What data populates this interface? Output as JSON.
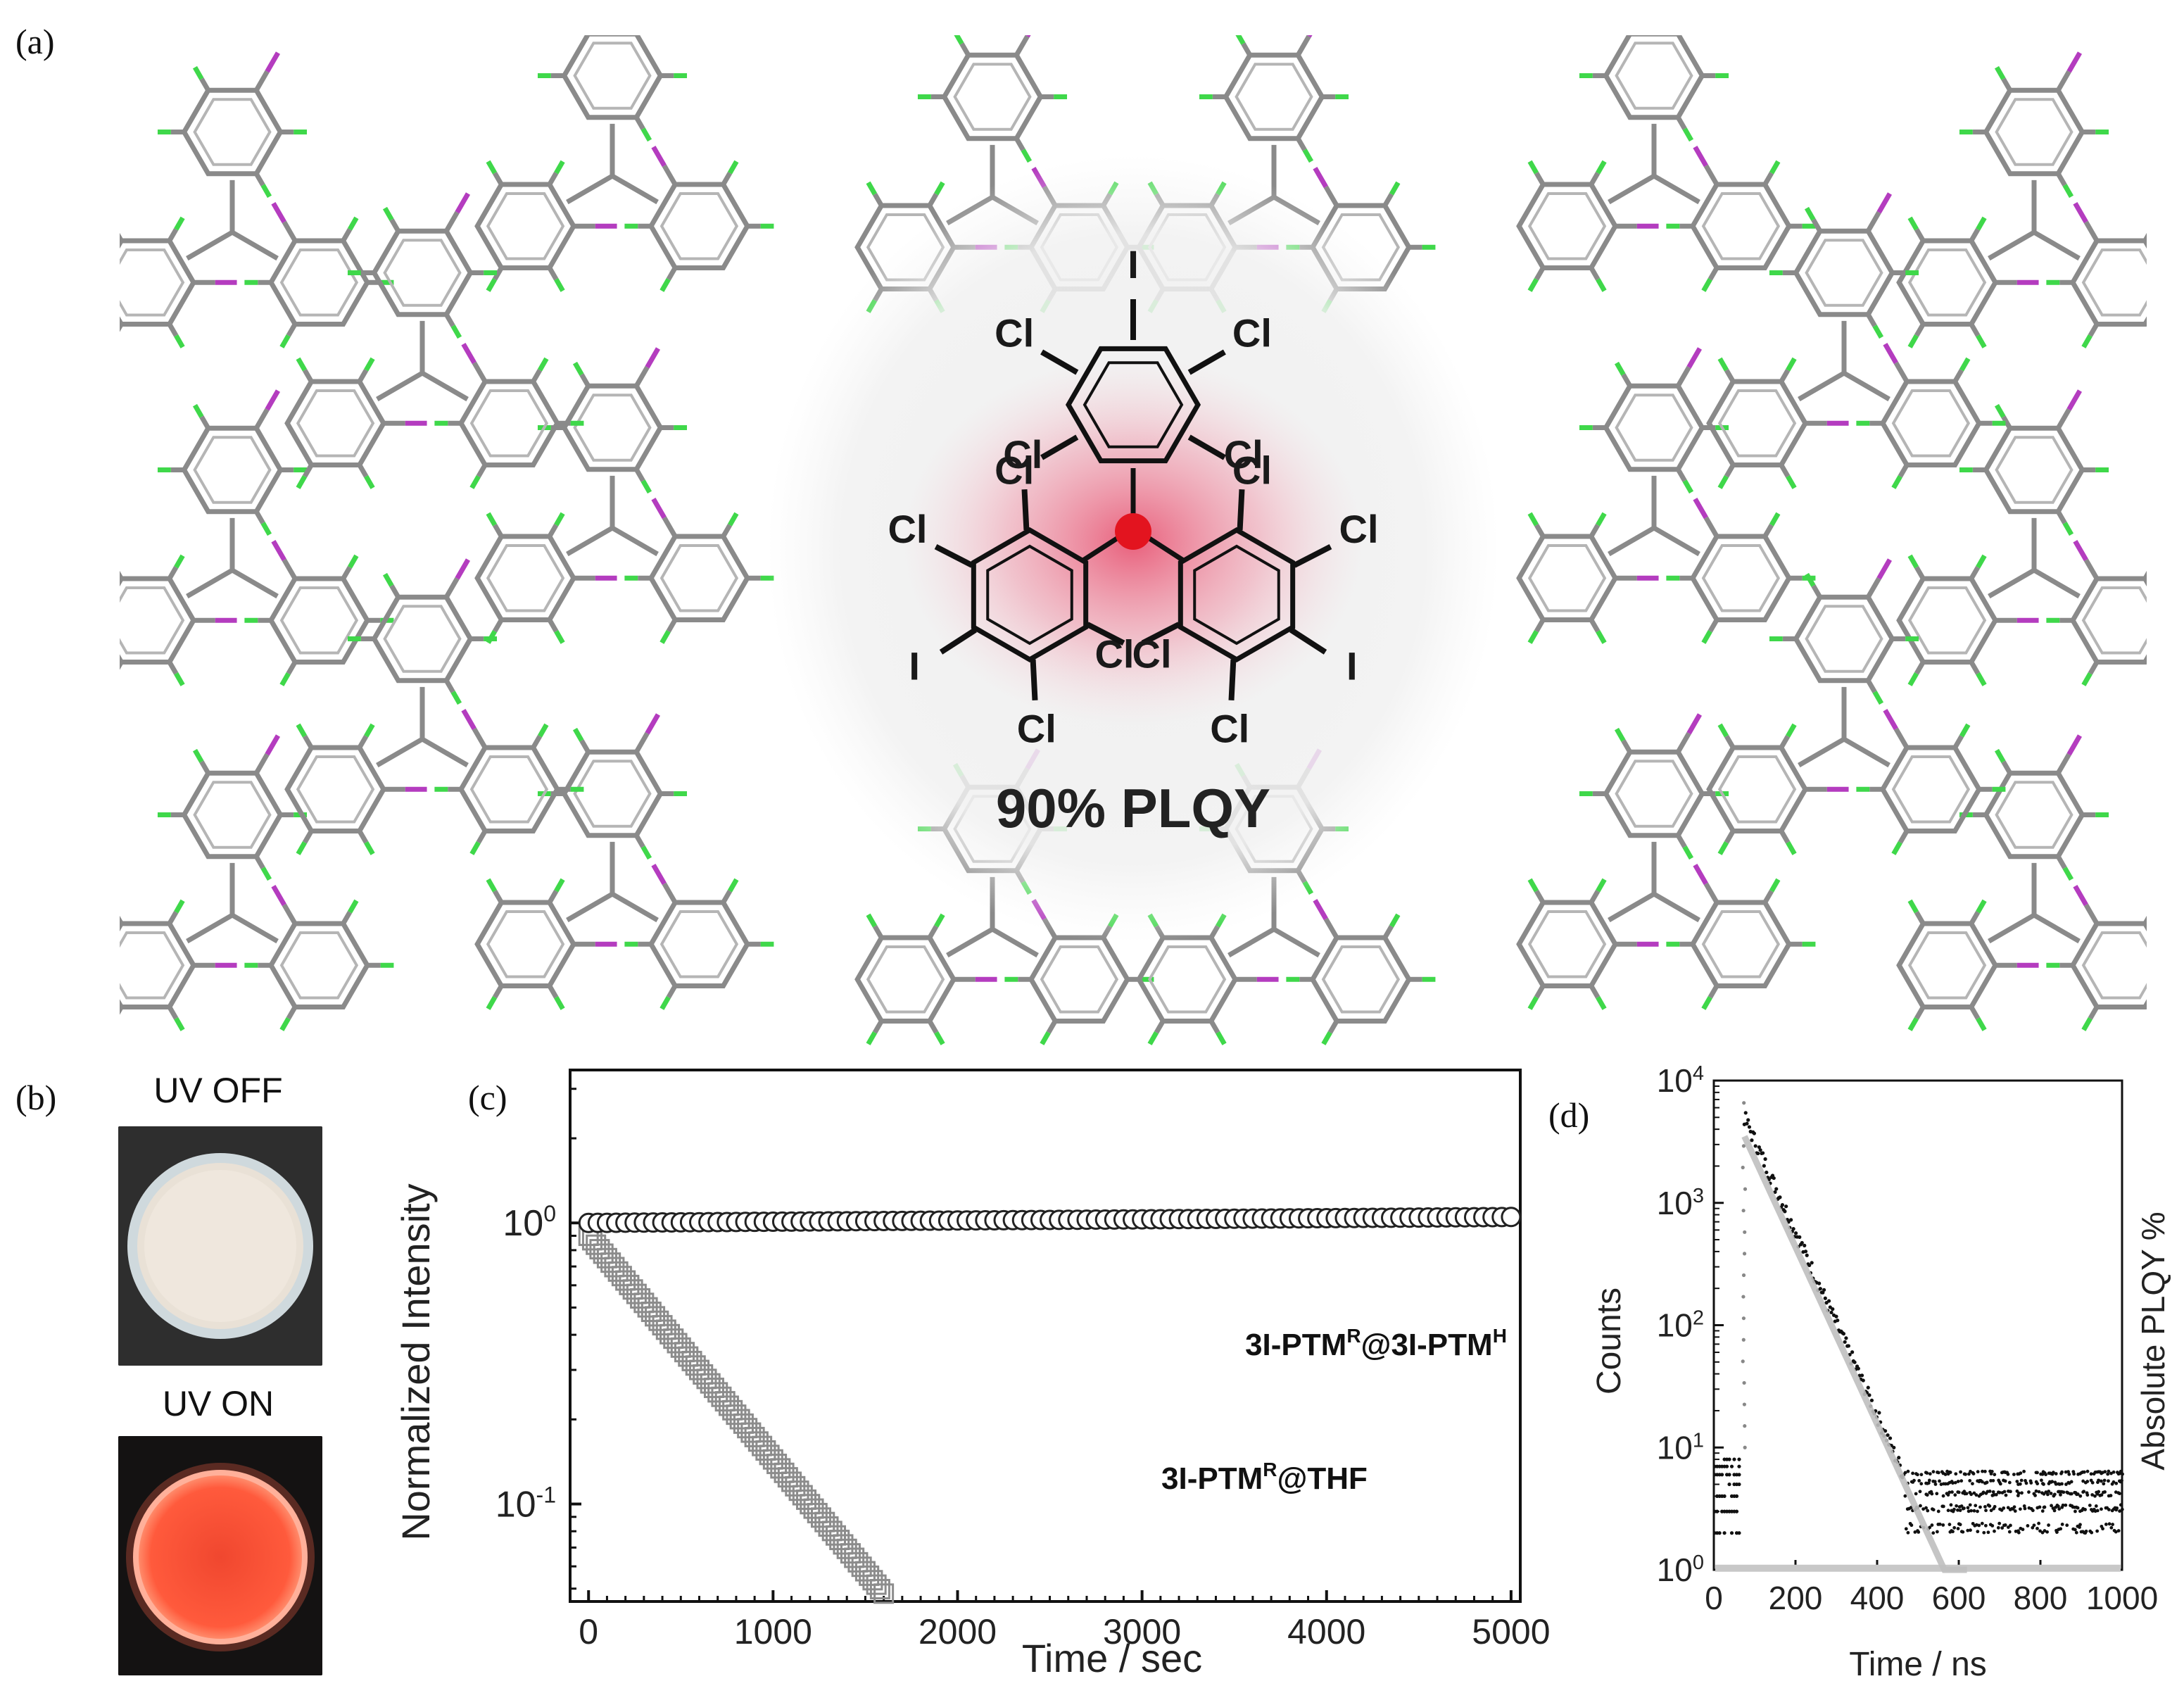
{
  "panel_a": {
    "label": "(a)",
    "molecule": {
      "substituent_cl": "Cl",
      "substituent_i": "I",
      "caption": "90% PLQY"
    }
  },
  "panel_b": {
    "label": "(b)",
    "uv_off_caption": "UV OFF",
    "uv_on_caption": "UV ON",
    "colors": {
      "uv_off_powder": "#efe7dd",
      "uv_on_glow": "#ff5a3c"
    }
  },
  "colors": {
    "chlorine": "#3fd84a",
    "iodine": "#b43cbf",
    "carbon": "#8a8a8a",
    "radical": "#e3141f",
    "glow": "#f07891"
  },
  "chart_data": [
    {
      "panel": "(c)",
      "type": "scatter",
      "xlabel": "Time / sec",
      "ylabel": "Normalized Intensity",
      "xlim": [
        -100,
        5050
      ],
      "ylim": [
        0.045,
        3.5
      ],
      "yscale": "log",
      "xticks": [
        0,
        1000,
        2000,
        3000,
        4000,
        5000
      ],
      "yticks": [
        {
          "v": 1,
          "base": "10",
          "exp": "0"
        },
        {
          "v": 0.1,
          "base": "10",
          "exp": "-1"
        }
      ],
      "series": [
        {
          "name": "3I-PTM@3I-PTM",
          "label_parts": [
            "3I-PTM",
            "R",
            "@3I-PTM",
            "H"
          ],
          "marker": "circle",
          "color": "#222222",
          "x_start": 0,
          "x_end": 5000,
          "x_step": 50,
          "y_start": 1.0,
          "y_end": 1.05
        },
        {
          "name": "3I-PTM@THF",
          "label_parts": [
            "3I-PTM",
            "R",
            "@THF"
          ],
          "marker": "square",
          "color": "#8c8c8c",
          "x_start": 0,
          "x_end": 1600,
          "x_step": 20,
          "y_start": 0.9,
          "y_end": 0.048
        }
      ]
    },
    {
      "panel": "(d)",
      "type": "scatter",
      "xlabel": "Time / ns",
      "ylabel": "Counts",
      "ylabel_right": "Absolute PLQY %",
      "xlim": [
        0,
        1000
      ],
      "ylim": [
        1,
        10000
      ],
      "yscale": "log",
      "xticks": [
        0,
        200,
        400,
        600,
        800,
        1000
      ],
      "yticks": [
        {
          "v": 1,
          "base": "10",
          "exp": "0"
        },
        {
          "v": 10,
          "base": "10",
          "exp": "1"
        },
        {
          "v": 100,
          "base": "10",
          "exp": "2"
        },
        {
          "v": 1000,
          "base": "10",
          "exp": "3"
        },
        {
          "v": 10000,
          "base": "10",
          "exp": "4"
        }
      ],
      "series": [
        {
          "name": "decay",
          "color": "#111111",
          "peak_x": 75,
          "peak_y": 9000,
          "tail_start": 5000,
          "decay_tau_ns": 58,
          "baseline": 4
        },
        {
          "name": "fit",
          "color": "#bfbfbf",
          "peak_x": 75,
          "peak_y": 3500,
          "decay_tau_ns": 60
        }
      ]
    }
  ]
}
